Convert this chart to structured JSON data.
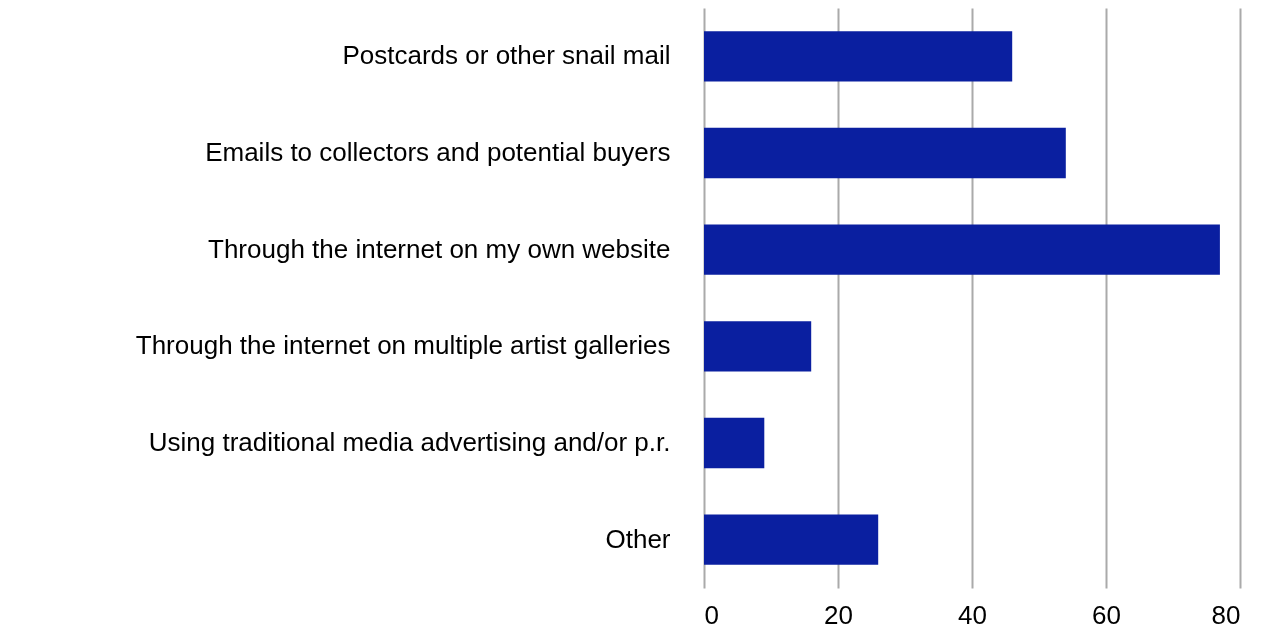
{
  "chart_data": {
    "type": "bar",
    "orientation": "horizontal",
    "categories": [
      "Postcards or other snail mail",
      "Emails to collectors and potential buyers",
      "Through the internet on my own website",
      "Through the internet on multiple artist galleries",
      "Using traditional media advertising and/or p.r.",
      "Other"
    ],
    "values": [
      46,
      54,
      77,
      16,
      9,
      26
    ],
    "color": "#0a1fa0",
    "xlim": [
      0,
      80
    ],
    "xticks": [
      0,
      20,
      40,
      60,
      80
    ],
    "grid": "x"
  }
}
